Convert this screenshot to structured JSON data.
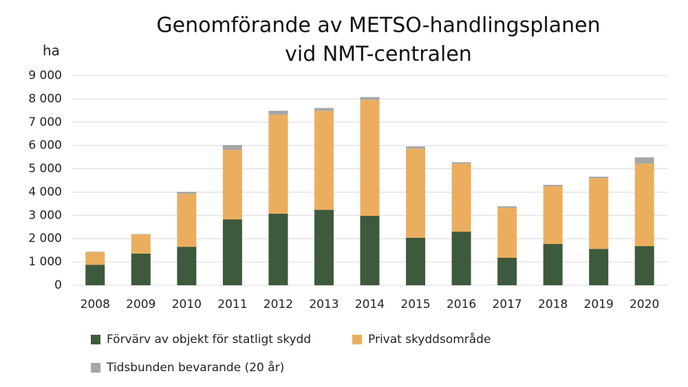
{
  "chart_data": {
    "type": "stacked_bar",
    "title": "Genomförande av METSO-handlingsplanen",
    "subtitle": "vid NMT-centralen",
    "y_label": "ha",
    "categories": [
      "2008",
      "2009",
      "2010",
      "2011",
      "2012",
      "2013",
      "2014",
      "2015",
      "2016",
      "2017",
      "2018",
      "2019",
      "2020"
    ],
    "series": [
      {
        "name": "Förvärv av objekt för statligt skydd",
        "color": "#3d5a3c",
        "values": [
          880,
          1360,
          1650,
          2830,
          3070,
          3240,
          2980,
          2040,
          2300,
          1180,
          1770,
          1560,
          1680
        ]
      },
      {
        "name": "Privat skyddsområde",
        "color": "#ebae5f",
        "values": [
          540,
          820,
          2270,
          2980,
          4250,
          4250,
          4980,
          3830,
          2920,
          2150,
          2480,
          3040,
          3540
        ]
      },
      {
        "name": "Tidsbunden bevarande (20 år)",
        "color": "#a6a6a6",
        "values": [
          20,
          20,
          90,
          210,
          170,
          120,
          120,
          90,
          60,
          60,
          60,
          60,
          270
        ]
      }
    ],
    "ylim": [
      0,
      9000
    ],
    "yticks": [
      0,
      {
        "value": 1000,
        "label": "1 000"
      },
      {
        "value": 2000,
        "label": "2 000"
      },
      {
        "value": 3000,
        "label": "3 000"
      },
      {
        "value": 4000,
        "label": "4 000"
      },
      {
        "value": 5000,
        "label": "5 000"
      },
      {
        "value": 6000,
        "label": "6 000"
      },
      {
        "value": 7000,
        "label": "7 000"
      },
      {
        "value": 8000,
        "label": "8 000"
      },
      {
        "value": 9000,
        "label": "9 000"
      }
    ],
    "grid": true
  }
}
